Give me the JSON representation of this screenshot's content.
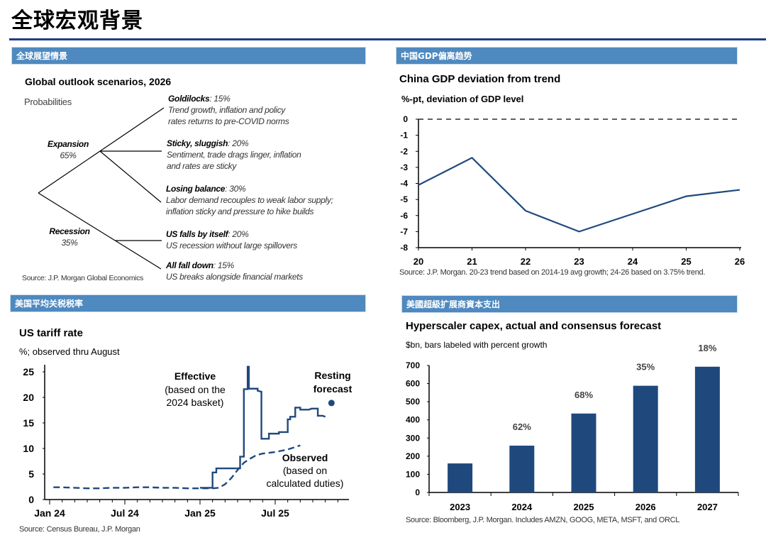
{
  "page": {
    "title": "全球宏观背景"
  },
  "sections": {
    "top_left": "全球展望情景",
    "top_right": "中国GDP偏离趋势",
    "bottom_left": "美国平均关税税率",
    "bottom_right": "美國超級扩展商資本支出"
  },
  "scenarios": {
    "title": "Global outlook scenarios, 2026",
    "subtitle": "Probabilities",
    "expansion": {
      "name": "Expansion",
      "prob": "65%"
    },
    "recession": {
      "name": "Recession",
      "prob": "35%"
    },
    "leaves": [
      {
        "name": "Goldilocks",
        "prob": ": 15%",
        "line1": "Trend growth, inflation and policy",
        "line2": "rates returns to pre-COVID norms"
      },
      {
        "name": "Sticky, sluggish",
        "prob": ": 20%",
        "line1": "Sentiment, trade drags linger, inflation",
        "line2": "and rates are sticky"
      },
      {
        "name": "Losing balance",
        "prob": ": 30%",
        "line1": "Labor demand recouples to weak labor supply;",
        "line2": "inflation sticky and pressure to hike builds"
      },
      {
        "name": "US falls by itself",
        "prob": ": 20%",
        "line1": "US recession without large spillovers",
        "line2": ""
      },
      {
        "name": "All fall down",
        "prob": ": 15%",
        "line1": "US breaks alongside financial markets",
        "line2": ""
      }
    ],
    "source": "Source: J.P. Morgan Global Economics"
  },
  "chart_data": [
    {
      "type": "line",
      "title": "China GDP deviation from trend",
      "ylabel": "%-pt, deviation of GDP level",
      "xlabel": "",
      "x": [
        "20",
        "21",
        "22",
        "23",
        "24",
        "25",
        "26"
      ],
      "series": [
        {
          "name": "Deviation from trend",
          "values": [
            -4.1,
            -2.4,
            -5.7,
            -7.0,
            -5.9,
            -4.8,
            -4.4
          ]
        }
      ],
      "yticks": [
        "0",
        "-1",
        "-2",
        "-3",
        "-4",
        "-5",
        "-6",
        "-7",
        "-8"
      ],
      "ylim": [
        -8,
        0
      ],
      "reference_line": {
        "y": 0,
        "style": "dashed"
      },
      "source": "Source: J.P. Morgan. 20-23 trend based on 2014-19 avg growth; 24-26 based on 3.75% trend."
    },
    {
      "type": "line",
      "title": "US tariff rate",
      "ylabel": "%; observed thru August",
      "x_ticks": [
        "Jan 24",
        "Jul 24",
        "Jan 25",
        "Jul 25"
      ],
      "yticks": [
        "0",
        "5",
        "10",
        "15",
        "20",
        "25"
      ],
      "ylim": [
        0,
        25
      ],
      "xlim_months": [
        0,
        23
      ],
      "series": [
        {
          "name": "Effective",
          "style": "solid-step",
          "points": [
            [
              12.0,
              2.3
            ],
            [
              13.0,
              2.3
            ],
            [
              13.0,
              5.3
            ],
            [
              13.3,
              5.3
            ],
            [
              13.3,
              6.1
            ],
            [
              15.2,
              6.1
            ],
            [
              15.2,
              8.4
            ],
            [
              15.5,
              8.4
            ],
            [
              15.5,
              21.6
            ],
            [
              15.8,
              21.6
            ],
            [
              15.8,
              26.5
            ],
            [
              15.9,
              26.5
            ],
            [
              15.9,
              21.7
            ],
            [
              16.6,
              21.7
            ],
            [
              16.6,
              21.3
            ],
            [
              16.9,
              21.1
            ],
            [
              16.9,
              11.9
            ],
            [
              17.5,
              11.9
            ],
            [
              17.5,
              12.9
            ],
            [
              18.3,
              12.9
            ],
            [
              18.3,
              13.2
            ],
            [
              19.0,
              13.2
            ],
            [
              19.0,
              15.7
            ],
            [
              19.2,
              15.7
            ],
            [
              19.2,
              16.2
            ],
            [
              19.6,
              16.2
            ],
            [
              19.6,
              18.0
            ],
            [
              20.0,
              18.0
            ],
            [
              20.0,
              17.6
            ],
            [
              20.7,
              17.6
            ],
            [
              20.9,
              17.8
            ],
            [
              21.4,
              17.8
            ],
            [
              21.4,
              16.4
            ],
            [
              21.8,
              16.4
            ],
            [
              22.0,
              16.2
            ]
          ],
          "label": "Effective",
          "label_note": [
            "(based on the",
            "2024 basket)"
          ]
        },
        {
          "name": "Observed",
          "style": "dashed",
          "points": [
            [
              0.3,
              2.4
            ],
            [
              1,
              2.4
            ],
            [
              2,
              2.3
            ],
            [
              3,
              2.2
            ],
            [
              4,
              2.2
            ],
            [
              5,
              2.3
            ],
            [
              6,
              2.3
            ],
            [
              7,
              2.4
            ],
            [
              8,
              2.4
            ],
            [
              9,
              2.3
            ],
            [
              10,
              2.3
            ],
            [
              11,
              2.2
            ],
            [
              12,
              2.2
            ],
            [
              13,
              2.2
            ],
            [
              13.5,
              2.3
            ],
            [
              14,
              3.0
            ],
            [
              14.5,
              4.2
            ],
            [
              15,
              5.8
            ],
            [
              15.5,
              7.2
            ],
            [
              16,
              8.0
            ],
            [
              16.5,
              8.7
            ],
            [
              17,
              9.0
            ],
            [
              18,
              9.3
            ],
            [
              19,
              9.8
            ],
            [
              20,
              10.6
            ]
          ],
          "label": "Observed",
          "label_note": [
            "(based on",
            "calculated duties)"
          ]
        },
        {
          "name": "Resting forecast",
          "style": "point",
          "points": [
            [
              23,
              18.9
            ]
          ],
          "label": "Resting",
          "label_note": [
            "forecast"
          ]
        }
      ],
      "source": "Source: Census Bureau, J.P. Morgan"
    },
    {
      "type": "bar",
      "title": "Hyperscaler capex, actual and consensus forecast",
      "ylabel": "$bn, bars labeled with percent growth",
      "categories": [
        "2023",
        "2024",
        "2025",
        "2026",
        "2027"
      ],
      "values": [
        160,
        258,
        435,
        588,
        693
      ],
      "data_labels": [
        "",
        "62%",
        "68%",
        "35%",
        "18%"
      ],
      "yticks": [
        "0",
        "100",
        "200",
        "300",
        "400",
        "500",
        "600",
        "700"
      ],
      "ylim": [
        0,
        700
      ],
      "source": "Source: Bloomberg, J.P. Morgan. Includes AMZN, GOOG, META, MSFT, and ORCL"
    }
  ],
  "colors": {
    "navy": "#1f497d",
    "section": "#4e89bf",
    "rule": "#1f3c88"
  }
}
